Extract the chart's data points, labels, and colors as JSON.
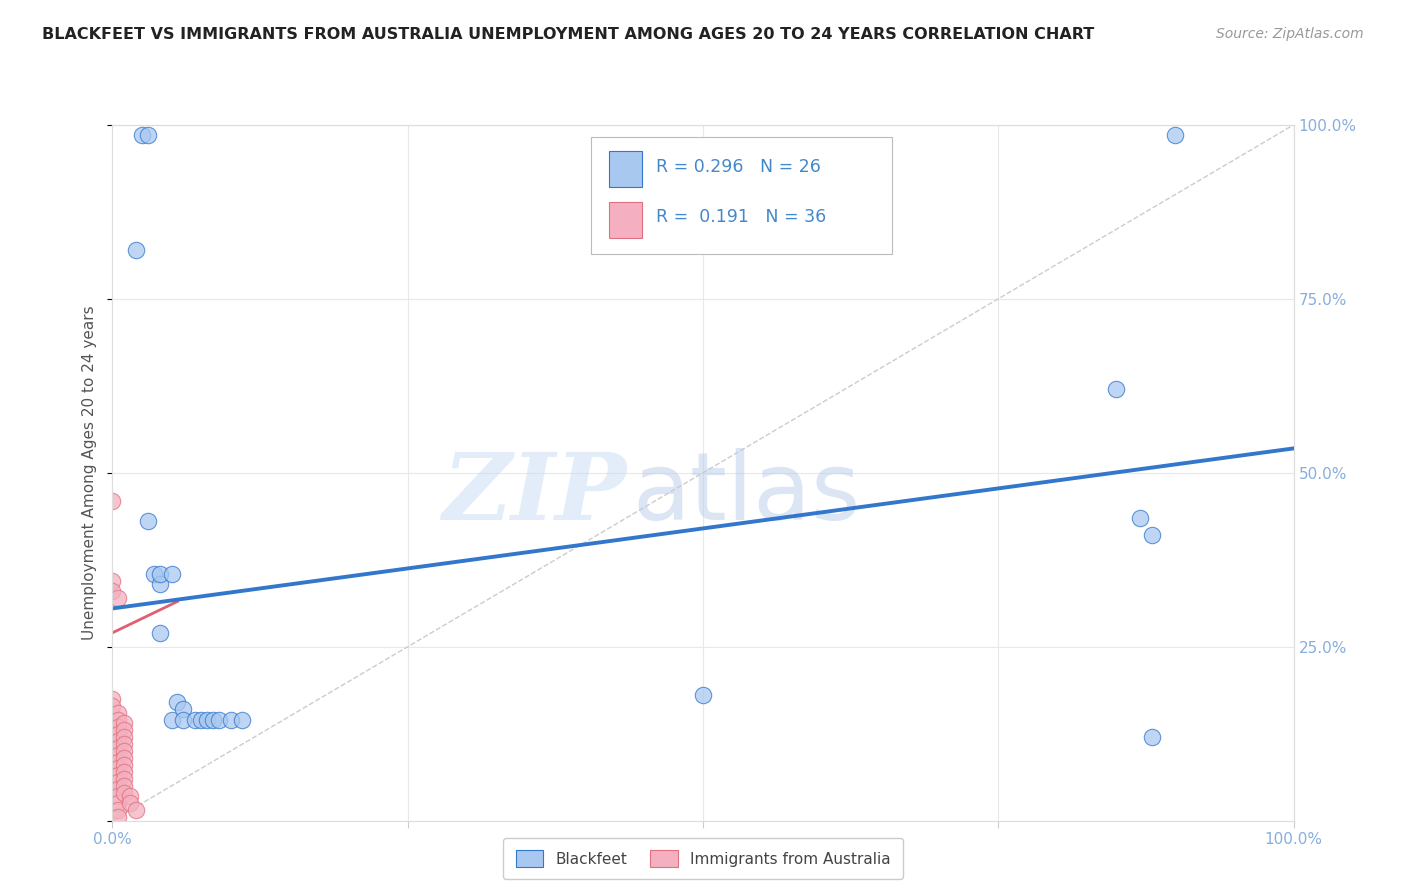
{
  "title": "BLACKFEET VS IMMIGRANTS FROM AUSTRALIA UNEMPLOYMENT AMONG AGES 20 TO 24 YEARS CORRELATION CHART",
  "source": "Source: ZipAtlas.com",
  "ylabel": "Unemployment Among Ages 20 to 24 years",
  "xlim": [
    0.0,
    1.0
  ],
  "ylim": [
    0.0,
    1.0
  ],
  "blackfeet_color": "#a8c8f0",
  "blackfeet_edge": "#5599dd",
  "immigrants_color": "#f4b0c0",
  "immigrants_edge": "#e07080",
  "blackfeet_scatter": [
    [
      0.02,
      0.82
    ],
    [
      0.025,
      0.985
    ],
    [
      0.03,
      0.985
    ],
    [
      0.03,
      0.43
    ],
    [
      0.035,
      0.355
    ],
    [
      0.04,
      0.34
    ],
    [
      0.04,
      0.27
    ],
    [
      0.04,
      0.355
    ],
    [
      0.05,
      0.355
    ],
    [
      0.05,
      0.145
    ],
    [
      0.055,
      0.17
    ],
    [
      0.06,
      0.16
    ],
    [
      0.06,
      0.145
    ],
    [
      0.07,
      0.145
    ],
    [
      0.075,
      0.145
    ],
    [
      0.08,
      0.145
    ],
    [
      0.085,
      0.145
    ],
    [
      0.09,
      0.145
    ],
    [
      0.5,
      0.18
    ],
    [
      0.85,
      0.62
    ],
    [
      0.87,
      0.435
    ],
    [
      0.88,
      0.41
    ],
    [
      0.88,
      0.12
    ],
    [
      0.9,
      0.985
    ],
    [
      0.1,
      0.145
    ],
    [
      0.11,
      0.145
    ]
  ],
  "immigrants_scatter": [
    [
      0.0,
      0.46
    ],
    [
      0.0,
      0.345
    ],
    [
      0.0,
      0.33
    ],
    [
      0.005,
      0.32
    ],
    [
      0.0,
      0.175
    ],
    [
      0.0,
      0.165
    ],
    [
      0.005,
      0.155
    ],
    [
      0.005,
      0.145
    ],
    [
      0.005,
      0.135
    ],
    [
      0.005,
      0.125
    ],
    [
      0.005,
      0.115
    ],
    [
      0.005,
      0.105
    ],
    [
      0.005,
      0.095
    ],
    [
      0.005,
      0.085
    ],
    [
      0.005,
      0.075
    ],
    [
      0.005,
      0.065
    ],
    [
      0.005,
      0.055
    ],
    [
      0.005,
      0.045
    ],
    [
      0.005,
      0.035
    ],
    [
      0.005,
      0.025
    ],
    [
      0.005,
      0.015
    ],
    [
      0.005,
      0.005
    ],
    [
      0.01,
      0.14
    ],
    [
      0.01,
      0.13
    ],
    [
      0.01,
      0.12
    ],
    [
      0.01,
      0.11
    ],
    [
      0.01,
      0.1
    ],
    [
      0.01,
      0.09
    ],
    [
      0.01,
      0.08
    ],
    [
      0.01,
      0.07
    ],
    [
      0.01,
      0.06
    ],
    [
      0.01,
      0.05
    ],
    [
      0.01,
      0.04
    ],
    [
      0.015,
      0.035
    ],
    [
      0.015,
      0.025
    ],
    [
      0.02,
      0.015
    ]
  ],
  "blue_line": {
    "x0": 0.0,
    "y0": 0.305,
    "x1": 1.0,
    "y1": 0.535
  },
  "pink_line": {
    "x0": 0.0,
    "y0": 0.27,
    "x1": 0.055,
    "y1": 0.315
  },
  "diagonal_color": "#cccccc",
  "blue_line_color": "#3377cc",
  "pink_line_color": "#e06070",
  "R_blue": "0.296",
  "N_blue": "26",
  "R_pink": "0.191",
  "N_pink": "36",
  "watermark_zip": "ZIP",
  "watermark_atlas": "atlas",
  "background_color": "#ffffff",
  "grid_color": "#e8e8e8",
  "tick_color": "#88aedd",
  "legend_color": "#4488cc"
}
